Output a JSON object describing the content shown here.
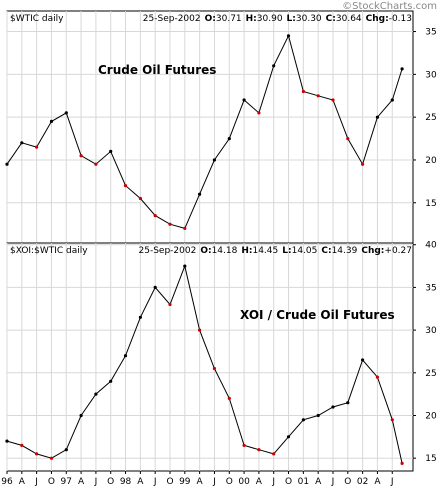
{
  "watermark": "©StockCharts.com",
  "chart_data": [
    {
      "type": "line",
      "header": {
        "symbol": "$WTIC daily",
        "date": "25-Sep-2002",
        "open_label": "O:",
        "open": "30.71",
        "high_label": "H:",
        "high": "30.90",
        "low_label": "L:",
        "low": "30.30",
        "close_label": "C:",
        "close": "30.64",
        "chg_label": "Chg:",
        "chg": "-0.13"
      },
      "annotation": "Crude Oil Futures",
      "ylim": [
        10.3,
        37.4
      ],
      "yticks": [
        15,
        20,
        25,
        30,
        35
      ],
      "grid": true,
      "colors": {
        "line": "#000000",
        "down": "#cc0000"
      },
      "x": [
        "1996-01",
        "1996-04",
        "1996-07",
        "1996-10",
        "1997-01",
        "1997-04",
        "1997-07",
        "1997-10",
        "1998-01",
        "1998-04",
        "1998-07",
        "1998-10",
        "1999-01",
        "1999-04",
        "1999-07",
        "1999-10",
        "2000-01",
        "2000-04",
        "2000-07",
        "2000-10",
        "2001-01",
        "2001-04",
        "2001-07",
        "2001-10",
        "2002-01",
        "2002-04",
        "2002-07",
        "2002-09"
      ],
      "values": [
        19.5,
        22.0,
        21.5,
        24.5,
        25.5,
        20.5,
        19.5,
        21.0,
        17.0,
        15.5,
        13.5,
        12.5,
        12.0,
        16.0,
        20.0,
        22.5,
        27.0,
        25.5,
        31.0,
        34.5,
        28.0,
        27.5,
        27.0,
        22.5,
        19.5,
        25.0,
        27.0,
        30.64
      ]
    },
    {
      "type": "line",
      "header": {
        "symbol": "$XOI:$WTIC daily",
        "date": "25-Sep-2002",
        "open_label": "O:",
        "open": "14.18",
        "high_label": "H:",
        "high": "14.45",
        "low_label": "L:",
        "low": "14.05",
        "close_label": "C:",
        "close": "14.39",
        "chg_label": "Chg:",
        "chg": "+0.27"
      },
      "annotation": "XOI / Crude Oil Futures",
      "ylim": [
        13.5,
        40.2
      ],
      "yticks": [
        15,
        20,
        25,
        30,
        35,
        40
      ],
      "grid": true,
      "colors": {
        "line": "#000000",
        "down": "#cc0000"
      },
      "x": [
        "1996-01",
        "1996-04",
        "1996-07",
        "1996-10",
        "1997-01",
        "1997-04",
        "1997-07",
        "1997-10",
        "1998-01",
        "1998-04",
        "1998-07",
        "1998-10",
        "1999-01",
        "1999-04",
        "1999-07",
        "1999-10",
        "2000-01",
        "2000-04",
        "2000-07",
        "2000-10",
        "2001-01",
        "2001-04",
        "2001-07",
        "2001-10",
        "2002-01",
        "2002-04",
        "2002-07",
        "2002-09"
      ],
      "values": [
        17.0,
        16.5,
        15.5,
        15.0,
        16.0,
        20.0,
        22.5,
        24.0,
        27.0,
        31.5,
        35.0,
        33.0,
        37.5,
        30.0,
        25.5,
        22.0,
        16.5,
        16.0,
        15.5,
        17.5,
        19.5,
        20.0,
        21.0,
        21.5,
        26.5,
        24.5,
        19.5,
        14.39
      ]
    }
  ],
  "x_axis": {
    "tick_labels": [
      "96",
      "A",
      "J",
      "O",
      "97",
      "A",
      "J",
      "O",
      "98",
      "A",
      "J",
      "O",
      "99",
      "A",
      "J",
      "O",
      "00",
      "A",
      "J",
      "O",
      "01",
      "A",
      "J",
      "O",
      "02",
      "A",
      "J"
    ]
  }
}
